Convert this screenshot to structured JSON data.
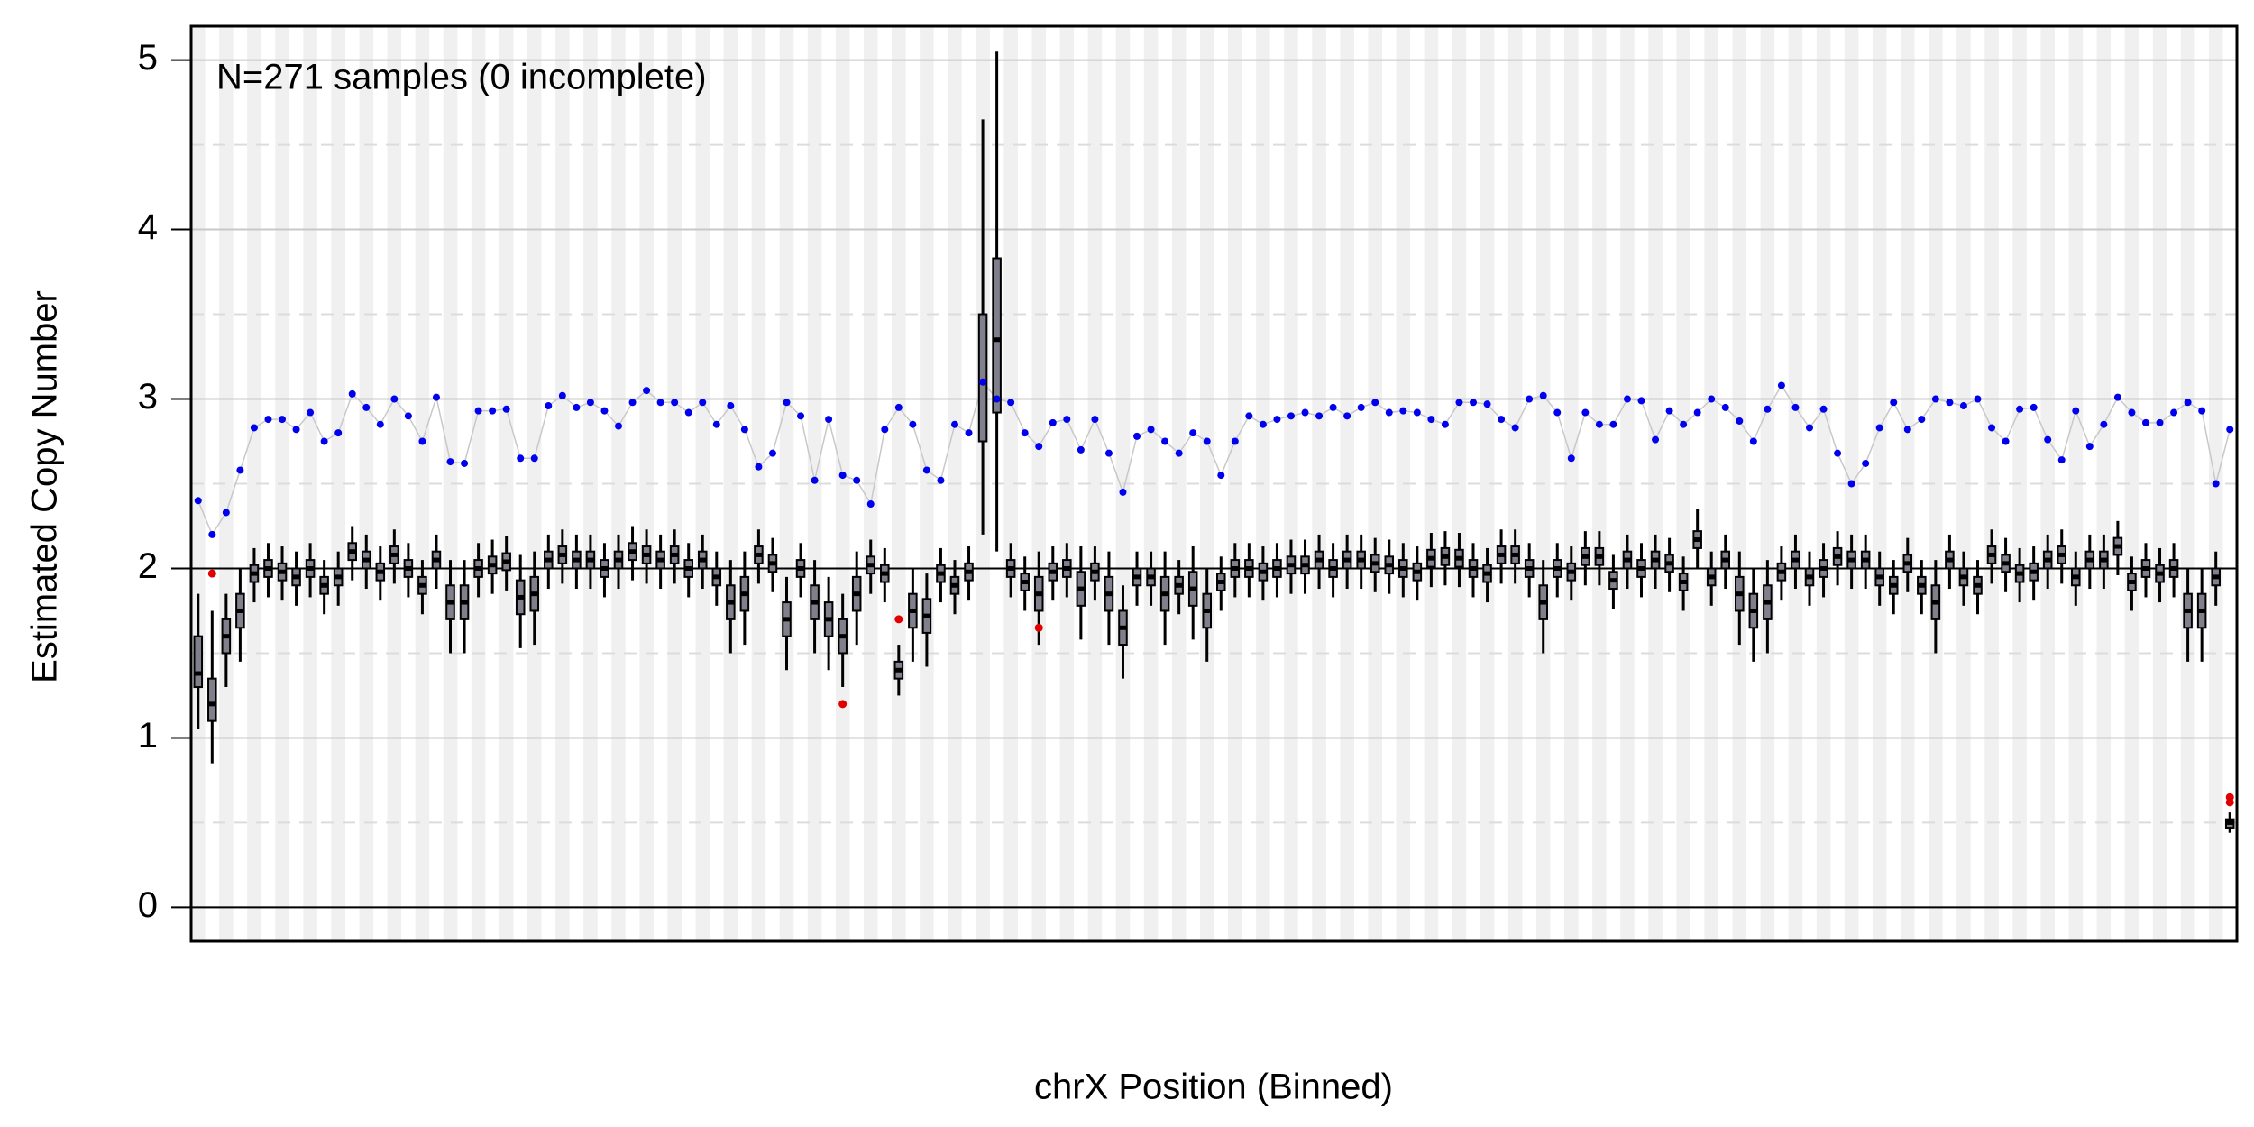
{
  "chart_data": {
    "type": "box",
    "annotation": "N=271 samples (0 incomplete)",
    "x_label": "chrX Position (Binned)",
    "y_label": "Estimated Copy Number",
    "ylim": [
      -0.2,
      5.2
    ],
    "yticks": [
      0,
      1,
      2,
      3,
      4,
      5
    ],
    "grid": true,
    "reference_lines": [
      0,
      2
    ],
    "box_color": "#80808c",
    "boxes": [
      [
        1.05,
        1.3,
        1.38,
        1.6,
        1.85
      ],
      [
        0.85,
        1.1,
        1.2,
        1.35,
        1.75
      ],
      [
        1.3,
        1.5,
        1.6,
        1.7,
        1.85
      ],
      [
        1.45,
        1.65,
        1.75,
        1.85,
        2.0
      ],
      [
        1.8,
        1.92,
        1.97,
        2.02,
        2.12
      ],
      [
        1.83,
        1.95,
        2.0,
        2.05,
        2.15
      ],
      [
        1.81,
        1.93,
        1.98,
        2.03,
        2.13
      ],
      [
        1.78,
        1.9,
        1.95,
        2.0,
        2.1
      ],
      [
        1.83,
        1.95,
        2.0,
        2.05,
        2.15
      ],
      [
        1.73,
        1.85,
        1.9,
        1.95,
        2.05
      ],
      [
        1.78,
        1.9,
        1.95,
        2.0,
        2.1
      ],
      [
        1.93,
        2.05,
        2.1,
        2.15,
        2.25
      ],
      [
        1.88,
        2.0,
        2.05,
        2.1,
        2.2
      ],
      [
        1.81,
        1.93,
        1.98,
        2.03,
        2.13
      ],
      [
        1.91,
        2.03,
        2.08,
        2.13,
        2.23
      ],
      [
        1.83,
        1.95,
        2.0,
        2.05,
        2.15
      ],
      [
        1.73,
        1.85,
        1.9,
        1.95,
        2.05
      ],
      [
        1.88,
        2.0,
        2.05,
        2.1,
        2.2
      ],
      [
        1.5,
        1.7,
        1.8,
        1.9,
        2.05
      ],
      [
        1.5,
        1.7,
        1.8,
        1.9,
        2.05
      ],
      [
        1.83,
        1.95,
        2.0,
        2.05,
        2.15
      ],
      [
        1.85,
        1.97,
        2.02,
        2.07,
        2.17
      ],
      [
        1.87,
        1.99,
        2.04,
        2.09,
        2.19
      ],
      [
        1.53,
        1.73,
        1.83,
        1.93,
        2.08
      ],
      [
        1.55,
        1.75,
        1.85,
        1.95,
        2.1
      ],
      [
        1.88,
        2.0,
        2.05,
        2.1,
        2.2
      ],
      [
        1.91,
        2.03,
        2.08,
        2.13,
        2.23
      ],
      [
        1.88,
        2.0,
        2.05,
        2.1,
        2.2
      ],
      [
        1.88,
        2.0,
        2.05,
        2.1,
        2.2
      ],
      [
        1.83,
        1.95,
        2.0,
        2.05,
        2.15
      ],
      [
        1.88,
        2.0,
        2.05,
        2.1,
        2.2
      ],
      [
        1.93,
        2.05,
        2.1,
        2.15,
        2.25
      ],
      [
        1.91,
        2.03,
        2.08,
        2.13,
        2.23
      ],
      [
        1.88,
        2.0,
        2.05,
        2.1,
        2.2
      ],
      [
        1.91,
        2.03,
        2.08,
        2.13,
        2.23
      ],
      [
        1.83,
        1.95,
        2.0,
        2.05,
        2.15
      ],
      [
        1.88,
        2.0,
        2.05,
        2.1,
        2.2
      ],
      [
        1.78,
        1.9,
        1.95,
        2.0,
        2.1
      ],
      [
        1.5,
        1.7,
        1.8,
        1.9,
        2.05
      ],
      [
        1.55,
        1.75,
        1.85,
        1.95,
        2.1
      ],
      [
        1.91,
        2.03,
        2.08,
        2.13,
        2.23
      ],
      [
        1.86,
        1.98,
        2.03,
        2.08,
        2.18
      ],
      [
        1.4,
        1.6,
        1.7,
        1.8,
        1.95
      ],
      [
        1.83,
        1.95,
        2.0,
        2.05,
        2.15
      ],
      [
        1.5,
        1.7,
        1.8,
        1.9,
        2.05
      ],
      [
        1.4,
        1.6,
        1.7,
        1.8,
        1.95
      ],
      [
        1.3,
        1.5,
        1.6,
        1.7,
        1.85
      ],
      [
        1.55,
        1.75,
        1.85,
        1.95,
        2.1
      ],
      [
        1.85,
        1.97,
        2.02,
        2.07,
        2.17
      ],
      [
        1.8,
        1.92,
        1.97,
        2.02,
        2.12
      ],
      [
        1.25,
        1.35,
        1.4,
        1.45,
        1.55
      ],
      [
        1.45,
        1.65,
        1.75,
        1.85,
        2.0
      ],
      [
        1.42,
        1.62,
        1.72,
        1.82,
        1.97
      ],
      [
        1.8,
        1.92,
        1.97,
        2.02,
        2.12
      ],
      [
        1.73,
        1.85,
        1.9,
        1.95,
        2.05
      ],
      [
        1.81,
        1.93,
        1.98,
        2.03,
        2.13
      ],
      [
        2.2,
        2.75,
        3.1,
        3.5,
        4.65
      ],
      [
        2.1,
        2.92,
        3.35,
        3.83,
        5.05
      ],
      [
        1.83,
        1.95,
        2.0,
        2.05,
        2.15
      ],
      [
        1.75,
        1.87,
        1.92,
        1.97,
        2.07
      ],
      [
        1.55,
        1.75,
        1.85,
        1.95,
        2.1
      ],
      [
        1.81,
        1.93,
        1.98,
        2.03,
        2.13
      ],
      [
        1.83,
        1.95,
        2.0,
        2.05,
        2.15
      ],
      [
        1.58,
        1.78,
        1.88,
        1.98,
        2.13
      ],
      [
        1.81,
        1.93,
        1.98,
        2.03,
        2.13
      ],
      [
        1.55,
        1.75,
        1.85,
        1.95,
        2.1
      ],
      [
        1.35,
        1.55,
        1.65,
        1.75,
        1.9
      ],
      [
        1.78,
        1.9,
        1.95,
        2.0,
        2.1
      ],
      [
        1.78,
        1.9,
        1.95,
        2.0,
        2.1
      ],
      [
        1.55,
        1.75,
        1.85,
        1.95,
        2.1
      ],
      [
        1.73,
        1.85,
        1.9,
        1.95,
        2.05
      ],
      [
        1.58,
        1.78,
        1.88,
        1.98,
        2.13
      ],
      [
        1.45,
        1.65,
        1.75,
        1.85,
        2.0
      ],
      [
        1.75,
        1.87,
        1.92,
        1.97,
        2.07
      ],
      [
        1.83,
        1.95,
        2.0,
        2.05,
        2.15
      ],
      [
        1.83,
        1.95,
        2.0,
        2.05,
        2.15
      ],
      [
        1.81,
        1.93,
        1.98,
        2.03,
        2.13
      ],
      [
        1.83,
        1.95,
        2.0,
        2.05,
        2.15
      ],
      [
        1.85,
        1.97,
        2.02,
        2.07,
        2.17
      ],
      [
        1.85,
        1.97,
        2.02,
        2.07,
        2.17
      ],
      [
        1.88,
        2.0,
        2.05,
        2.1,
        2.2
      ],
      [
        1.83,
        1.95,
        2.0,
        2.05,
        2.15
      ],
      [
        1.88,
        2.0,
        2.05,
        2.1,
        2.2
      ],
      [
        1.88,
        2.0,
        2.05,
        2.1,
        2.2
      ],
      [
        1.86,
        1.98,
        2.03,
        2.08,
        2.18
      ],
      [
        1.85,
        1.97,
        2.02,
        2.07,
        2.17
      ],
      [
        1.83,
        1.95,
        2.0,
        2.05,
        2.15
      ],
      [
        1.81,
        1.93,
        1.98,
        2.03,
        2.13
      ],
      [
        1.89,
        2.01,
        2.06,
        2.11,
        2.21
      ],
      [
        1.9,
        2.02,
        2.07,
        2.12,
        2.22
      ],
      [
        1.89,
        2.01,
        2.06,
        2.11,
        2.21
      ],
      [
        1.83,
        1.95,
        2.0,
        2.05,
        2.15
      ],
      [
        1.8,
        1.92,
        1.97,
        2.02,
        2.12
      ],
      [
        1.91,
        2.03,
        2.08,
        2.13,
        2.23
      ],
      [
        1.91,
        2.03,
        2.08,
        2.13,
        2.23
      ],
      [
        1.83,
        1.95,
        2.0,
        2.05,
        2.15
      ],
      [
        1.5,
        1.7,
        1.8,
        1.9,
        2.05
      ],
      [
        1.83,
        1.95,
        2.0,
        2.05,
        2.15
      ],
      [
        1.81,
        1.93,
        1.98,
        2.03,
        2.13
      ],
      [
        1.9,
        2.02,
        2.07,
        2.12,
        2.22
      ],
      [
        1.9,
        2.02,
        2.07,
        2.12,
        2.22
      ],
      [
        1.76,
        1.88,
        1.93,
        1.98,
        2.08
      ],
      [
        1.88,
        2.0,
        2.05,
        2.1,
        2.2
      ],
      [
        1.83,
        1.95,
        2.0,
        2.05,
        2.15
      ],
      [
        1.88,
        2.0,
        2.05,
        2.1,
        2.2
      ],
      [
        1.86,
        1.98,
        2.03,
        2.08,
        2.18
      ],
      [
        1.75,
        1.87,
        1.92,
        1.97,
        2.07
      ],
      [
        2.0,
        2.12,
        2.17,
        2.22,
        2.35
      ],
      [
        1.78,
        1.9,
        1.95,
        2.0,
        2.1
      ],
      [
        1.88,
        2.0,
        2.05,
        2.1,
        2.2
      ],
      [
        1.55,
        1.75,
        1.85,
        1.95,
        2.1
      ],
      [
        1.45,
        1.65,
        1.75,
        1.85,
        2.0
      ],
      [
        1.5,
        1.7,
        1.8,
        1.9,
        2.05
      ],
      [
        1.81,
        1.93,
        1.98,
        2.03,
        2.13
      ],
      [
        1.88,
        2.0,
        2.05,
        2.1,
        2.2
      ],
      [
        1.78,
        1.9,
        1.95,
        2.0,
        2.1
      ],
      [
        1.83,
        1.95,
        2.0,
        2.05,
        2.15
      ],
      [
        1.9,
        2.02,
        2.07,
        2.12,
        2.22
      ],
      [
        1.88,
        2.0,
        2.05,
        2.1,
        2.2
      ],
      [
        1.88,
        2.0,
        2.05,
        2.1,
        2.2
      ],
      [
        1.78,
        1.9,
        1.95,
        2.0,
        2.1
      ],
      [
        1.73,
        1.85,
        1.9,
        1.95,
        2.05
      ],
      [
        1.86,
        1.98,
        2.03,
        2.08,
        2.18
      ],
      [
        1.73,
        1.85,
        1.9,
        1.95,
        2.05
      ],
      [
        1.5,
        1.7,
        1.8,
        1.9,
        2.05
      ],
      [
        1.88,
        2.0,
        2.05,
        2.1,
        2.2
      ],
      [
        1.78,
        1.9,
        1.95,
        2.0,
        2.1
      ],
      [
        1.73,
        1.85,
        1.9,
        1.95,
        2.05
      ],
      [
        1.91,
        2.03,
        2.08,
        2.13,
        2.23
      ],
      [
        1.86,
        1.98,
        2.03,
        2.08,
        2.18
      ],
      [
        1.8,
        1.92,
        1.97,
        2.02,
        2.12
      ],
      [
        1.81,
        1.93,
        1.98,
        2.03,
        2.13
      ],
      [
        1.88,
        2.0,
        2.05,
        2.1,
        2.2
      ],
      [
        1.91,
        2.03,
        2.08,
        2.13,
        2.23
      ],
      [
        1.78,
        1.9,
        1.95,
        2.0,
        2.1
      ],
      [
        1.88,
        2.0,
        2.05,
        2.1,
        2.2
      ],
      [
        1.88,
        2.0,
        2.05,
        2.1,
        2.2
      ],
      [
        1.96,
        2.08,
        2.13,
        2.18,
        2.28
      ],
      [
        1.75,
        1.87,
        1.92,
        1.97,
        2.07
      ],
      [
        1.83,
        1.95,
        2.0,
        2.05,
        2.15
      ],
      [
        1.8,
        1.92,
        1.97,
        2.02,
        2.12
      ],
      [
        1.83,
        1.95,
        2.0,
        2.05,
        2.15
      ],
      [
        1.45,
        1.65,
        1.75,
        1.85,
        2.0
      ],
      [
        1.45,
        1.65,
        1.75,
        1.85,
        2.0
      ],
      [
        1.78,
        1.9,
        1.95,
        2.0,
        2.1
      ],
      [
        0.44,
        0.47,
        0.5,
        0.52,
        0.56
      ]
    ],
    "highlight": {
      "color": "#0000ee",
      "values": [
        2.4,
        2.2,
        2.33,
        2.58,
        2.83,
        2.88,
        2.88,
        2.82,
        2.92,
        2.75,
        2.8,
        3.03,
        2.95,
        2.85,
        3.0,
        2.9,
        2.75,
        3.01,
        2.63,
        2.62,
        2.93,
        2.93,
        2.94,
        2.65,
        2.65,
        2.96,
        3.02,
        2.95,
        2.98,
        2.93,
        2.84,
        2.98,
        3.05,
        2.98,
        2.98,
        2.92,
        2.98,
        2.85,
        2.96,
        2.82,
        2.6,
        2.68,
        2.98,
        2.9,
        2.52,
        2.88,
        2.55,
        2.52,
        2.38,
        2.82,
        2.95,
        2.85,
        2.58,
        2.52,
        2.85,
        2.8,
        3.1,
        3.0,
        2.98,
        2.8,
        2.72,
        2.86,
        2.88,
        2.7,
        2.88,
        2.68,
        2.45,
        2.78,
        2.82,
        2.75,
        2.68,
        2.8,
        2.75,
        2.55,
        2.75,
        2.9,
        2.85,
        2.88,
        2.9,
        2.92,
        2.9,
        2.95,
        2.9,
        2.95,
        2.98,
        2.92,
        2.93,
        2.92,
        2.88,
        2.85,
        2.98,
        2.98,
        2.97,
        2.88,
        2.83,
        3.0,
        3.02,
        2.92,
        2.65,
        2.92,
        2.85,
        2.85,
        3.0,
        2.99,
        2.76,
        2.93,
        2.85,
        2.92,
        3.0,
        2.95,
        2.87,
        2.75,
        2.94,
        3.08,
        2.95,
        2.83,
        2.94,
        2.68,
        2.5,
        2.62,
        2.83,
        2.98,
        2.82,
        2.88,
        3.0,
        2.98,
        2.96,
        3.0,
        2.83,
        2.75,
        2.94,
        2.95,
        2.76,
        2.64,
        2.93,
        2.72,
        2.85,
        3.01,
        2.92,
        2.86,
        2.86,
        2.92,
        2.98,
        2.93,
        2.5,
        2.82
      ]
    },
    "flagged": {
      "color": "#e00000",
      "x": [
        1,
        46,
        50,
        60,
        145,
        145
      ],
      "values": [
        1.97,
        1.2,
        1.7,
        1.65,
        0.65,
        0.62
      ]
    }
  }
}
